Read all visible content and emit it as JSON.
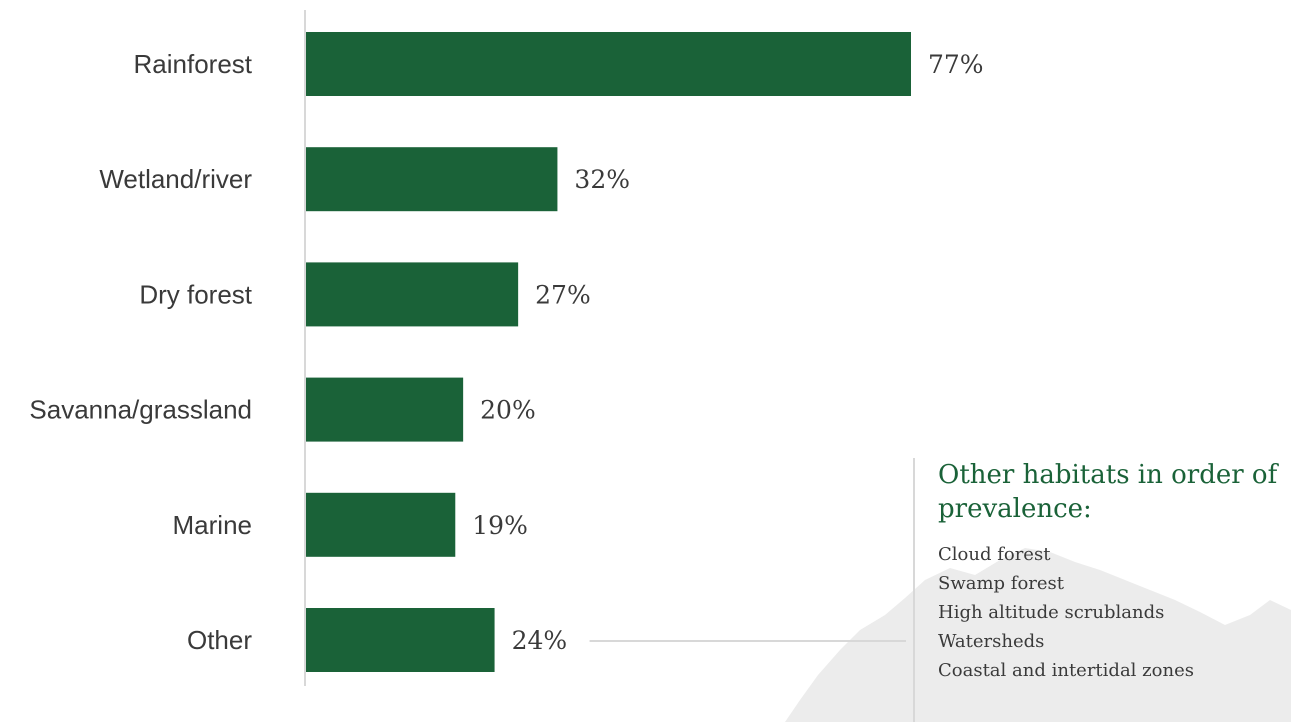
{
  "chart_data": {
    "type": "bar",
    "orientation": "horizontal",
    "title": "",
    "xlabel": "",
    "ylabel": "",
    "categories": [
      "Rainforest",
      "Wetland/river",
      "Dry forest",
      "Savanna/grassland",
      "Marine",
      "Other"
    ],
    "values": [
      77,
      32,
      27,
      20,
      19,
      24
    ],
    "value_labels": [
      "77%",
      "32%",
      "27%",
      "20%",
      "19%",
      "24%"
    ],
    "xlim": [
      0,
      100
    ],
    "grid": false,
    "bar_color": "#1a6238",
    "callout_from_category": "Other"
  },
  "side_panel": {
    "title": "Other habitats in order of prevalence:",
    "items": [
      "Cloud forest",
      "Swamp forest",
      "High altitude scrublands",
      "Watersheds",
      "Coastal and intertidal zones"
    ],
    "title_color": "#1a6238"
  },
  "colors": {
    "bar": "#1a6238",
    "text": "#3a3a3a",
    "axis": "#d8d8d8",
    "background_shape": "#ececec"
  }
}
